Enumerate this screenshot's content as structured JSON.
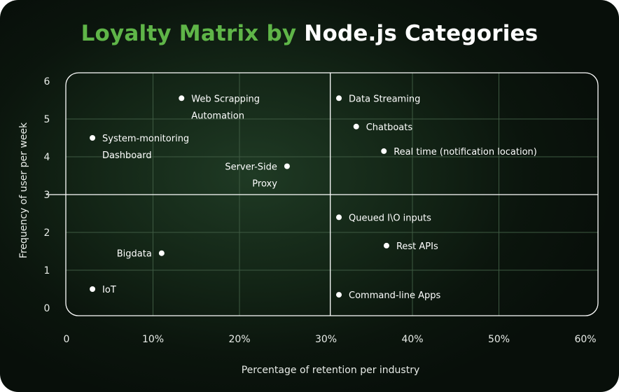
{
  "title": {
    "accent": "Loyalty Matrix by",
    "main": "Node.js Categories"
  },
  "chart_data": {
    "type": "scatter",
    "xlabel": "Percentage of retention per industry",
    "ylabel": "Frequency of user per week",
    "xlim": [
      0,
      60
    ],
    "ylim": [
      0,
      6
    ],
    "x_ticks": [
      "0",
      "10%",
      "20%",
      "30%",
      "40%",
      "50%",
      "60%"
    ],
    "y_ticks": [
      "0",
      "1",
      "2",
      "3",
      "4",
      "5",
      "6"
    ],
    "quadrant_split": {
      "x": 30.5,
      "y": 3
    },
    "points": [
      {
        "label": [
          "Web Scrapping",
          "Automation"
        ],
        "x": 13.3,
        "y": 5.55,
        "side": "right"
      },
      {
        "label": [
          "System-monitoring",
          "Dashboard"
        ],
        "x": 3,
        "y": 4.5,
        "side": "right"
      },
      {
        "label": [
          "Server-Side",
          "Proxy"
        ],
        "x": 25.5,
        "y": 3.75,
        "side": "left"
      },
      {
        "label": [
          "Data Streaming"
        ],
        "x": 31.5,
        "y": 5.55,
        "side": "right"
      },
      {
        "label": [
          "Chatboats"
        ],
        "x": 33.5,
        "y": 4.8,
        "side": "right"
      },
      {
        "label": [
          "Real time (notification location)"
        ],
        "x": 36.7,
        "y": 4.15,
        "side": "right"
      },
      {
        "label": [
          "Queued I\\O inputs"
        ],
        "x": 31.5,
        "y": 2.4,
        "side": "right"
      },
      {
        "label": [
          "Rest APIs"
        ],
        "x": 37,
        "y": 1.65,
        "side": "right"
      },
      {
        "label": [
          "Command-line Apps"
        ],
        "x": 31.5,
        "y": 0.35,
        "side": "right"
      },
      {
        "label": [
          "Bigdata"
        ],
        "x": 11,
        "y": 1.45,
        "side": "left"
      },
      {
        "label": [
          "IoT"
        ],
        "x": 3,
        "y": 0.5,
        "side": "right"
      }
    ]
  },
  "colors": {
    "accent": "#5fb548",
    "point": "#ffffff",
    "grid": "#3e5a42",
    "border": "#ffffff"
  }
}
